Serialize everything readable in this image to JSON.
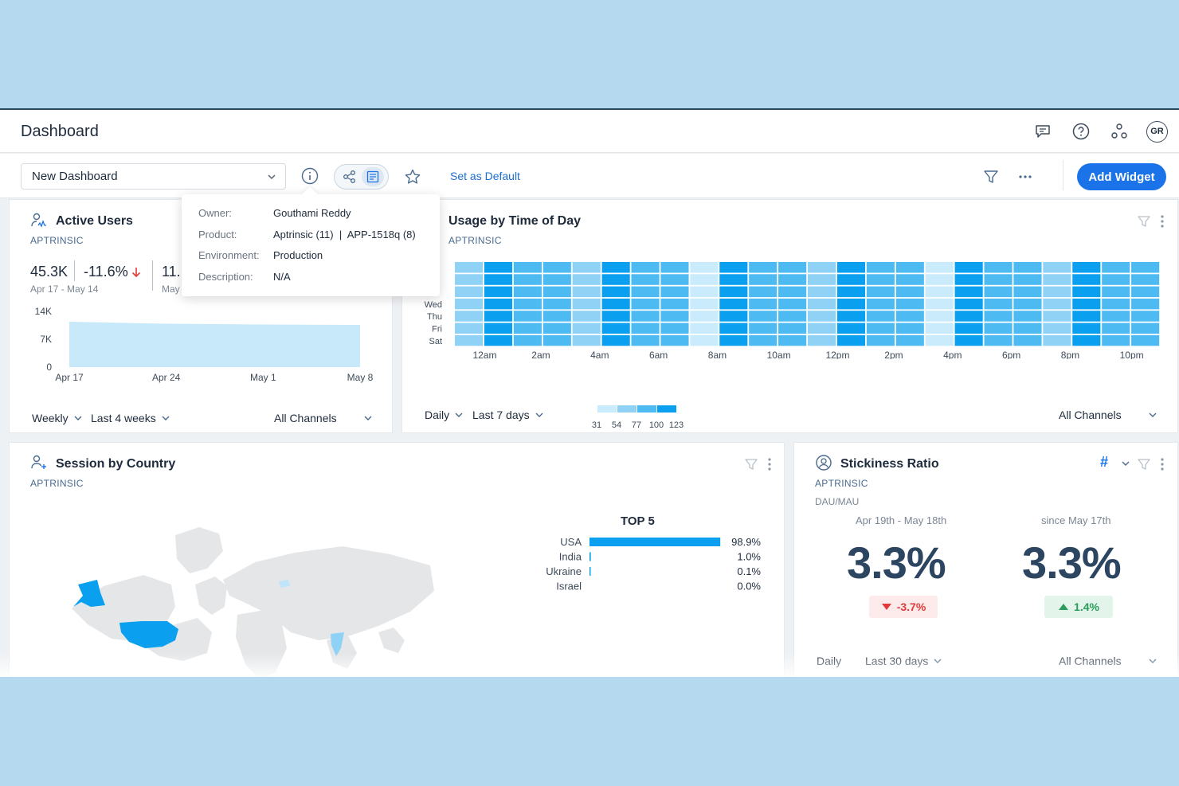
{
  "header": {
    "title": "Dashboard",
    "avatar_initials": "GR"
  },
  "toolbar": {
    "dashboard_select": "New Dashboard",
    "set_default": "Set as Default",
    "add_widget": "Add Widget"
  },
  "info_popover": {
    "rows": [
      {
        "key": "Owner:",
        "value": "Gouthami Reddy"
      },
      {
        "key": "Product:",
        "value": "Aptrinsic (11)  |  APP-1518q (8)"
      },
      {
        "key": "Environment:",
        "value": "Production"
      },
      {
        "key": "Description:",
        "value": "N/A"
      }
    ]
  },
  "active_users": {
    "title": "Active Users",
    "source": "APTRINSIC",
    "value": "45.3K",
    "change": "-11.6%",
    "range": "Apr 17 - May 14",
    "value2": "11.",
    "range2": "May",
    "frequency": "Weekly",
    "period": "Last 4 weeks",
    "channels": "All Channels"
  },
  "usage_by_time": {
    "title": "Usage by Time of Day",
    "source": "APTRINSIC",
    "day_labels": [
      "Wed",
      "Thu",
      "Fri",
      "Sat"
    ],
    "frequency": "Daily",
    "period": "Last 7 days",
    "channels": "All Channels",
    "legend_values": [
      "31",
      "54",
      "77",
      "100",
      "123"
    ]
  },
  "session_by_country": {
    "title": "Session by Country",
    "source": "APTRINSIC",
    "top_title": "TOP 5"
  },
  "stickiness": {
    "title": "Stickiness Ratio",
    "source": "APTRINSIC",
    "metric": "DAU/MAU",
    "hash": "#",
    "col1": {
      "range": "Apr 19th - May 18th",
      "value": "3.3%",
      "change": "-3.7%"
    },
    "col2": {
      "range": "since May 17th",
      "value": "3.3%",
      "change": "1.4%"
    },
    "frequency": "Daily",
    "period": "Last 30 days",
    "channels": "All Channels"
  },
  "colors": {
    "accent": "#1a73e8",
    "bar": "#0aa0ef",
    "area": "#c7e9f9",
    "down": "#e03b3b",
    "up": "#2a9d5c"
  },
  "chart_data": [
    {
      "type": "area",
      "x": [
        "Apr 17",
        "Apr 24",
        "May 1",
        "May 8"
      ],
      "values": [
        11400,
        10900,
        10700,
        10600
      ],
      "yticks": [
        "14K",
        "7K",
        "0"
      ],
      "ylim": [
        0,
        14000
      ]
    },
    {
      "type": "heatmap",
      "xticks": [
        "12am",
        "2am",
        "4am",
        "6am",
        "8am",
        "10am",
        "12pm",
        "2pm",
        "4pm",
        "6pm",
        "8pm",
        "10pm"
      ],
      "rows": 7,
      "columns": 24,
      "hour_levels": [
        1,
        3,
        2,
        2,
        1,
        3,
        2,
        2,
        0,
        3,
        2,
        2,
        1,
        3,
        2,
        2,
        0,
        3,
        2,
        2,
        1,
        3,
        2,
        2
      ]
    },
    {
      "type": "bar",
      "categories": [
        "USA",
        "India",
        "Ukraine",
        "Israel"
      ],
      "values": [
        98.9,
        1.0,
        0.1,
        0.0
      ],
      "labels": [
        "98.9%",
        "1.0%",
        "0.1%",
        "0.0%"
      ]
    }
  ]
}
